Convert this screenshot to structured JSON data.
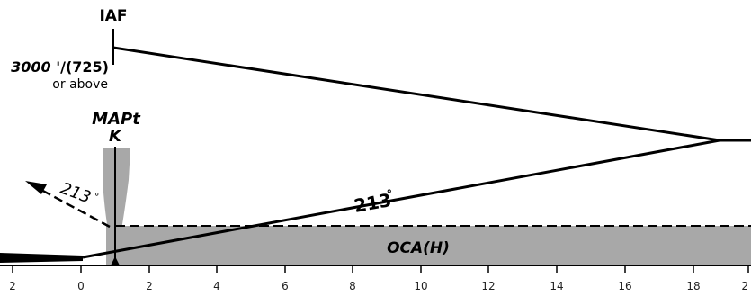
{
  "chart": {
    "iaf_label": "IAF",
    "altitude_value": "3000 '",
    "altitude_height": "/(725)",
    "altitude_note": "or above",
    "mapt_label": "MAPt",
    "mapt_fix": "K",
    "missed_track": "213",
    "degree_sign": "°",
    "inbound_track": "213",
    "oca_label": "OCA(H)",
    "colors": {
      "line": "#000000",
      "shade": "#a8a8a8",
      "background": "#ffffff"
    }
  },
  "axis": {
    "ticks": [
      "2",
      "0",
      "2",
      "4",
      "6",
      "8",
      "10",
      "12",
      "14",
      "16",
      "18",
      "2"
    ]
  }
}
